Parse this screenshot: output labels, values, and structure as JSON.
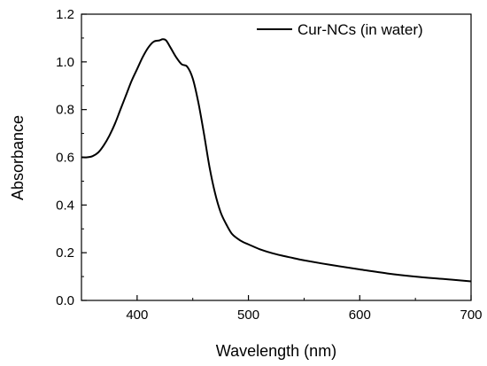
{
  "chart_data": {
    "type": "line",
    "title": "",
    "xlabel": "Wavelength (nm)",
    "ylabel": "Absorbance",
    "xlim": [
      350,
      700
    ],
    "ylim": [
      0.0,
      1.2
    ],
    "x_ticks": [
      400,
      500,
      600,
      700
    ],
    "x_tick_labels": [
      "400",
      "500",
      "600",
      "700"
    ],
    "y_ticks": [
      0.0,
      0.2,
      0.4,
      0.6,
      0.8,
      1.0,
      1.2
    ],
    "y_tick_labels": [
      "0.0",
      "0.2",
      "0.4",
      "0.6",
      "0.8",
      "1.0",
      "1.2"
    ],
    "grid": false,
    "legend_position": "top-right",
    "series": [
      {
        "name": "Cur-NCs (in water)",
        "color": "#000000",
        "x": [
          350,
          355,
          360,
          365,
          370,
          375,
          380,
          385,
          390,
          395,
          400,
          405,
          410,
          415,
          420,
          423,
          426,
          430,
          435,
          440,
          445,
          450,
          455,
          460,
          465,
          470,
          475,
          480,
          485,
          490,
          495,
          500,
          510,
          520,
          530,
          540,
          550,
          575,
          600,
          625,
          650,
          675,
          700
        ],
        "values": [
          0.6,
          0.6,
          0.605,
          0.62,
          0.65,
          0.69,
          0.74,
          0.8,
          0.86,
          0.92,
          0.97,
          1.02,
          1.06,
          1.085,
          1.09,
          1.095,
          1.09,
          1.06,
          1.02,
          0.99,
          0.98,
          0.93,
          0.83,
          0.7,
          0.56,
          0.45,
          0.37,
          0.32,
          0.28,
          0.26,
          0.245,
          0.235,
          0.215,
          0.2,
          0.188,
          0.178,
          0.168,
          0.148,
          0.13,
          0.113,
          0.1,
          0.09,
          0.08
        ]
      }
    ]
  }
}
